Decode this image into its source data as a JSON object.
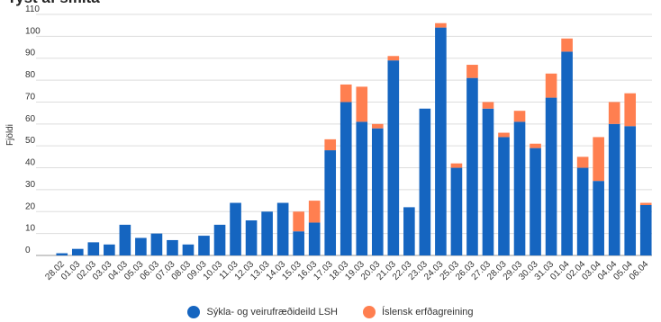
{
  "chart_data": {
    "type": "bar",
    "title": "Tyst af smita",
    "ylabel": "Fjöldi",
    "ylim": [
      0,
      110
    ],
    "yticks": [
      0,
      10,
      20,
      30,
      40,
      50,
      60,
      70,
      80,
      90,
      100,
      110
    ],
    "categories": [
      "28.02",
      "01.03",
      "02.03",
      "03.03",
      "04.03",
      "05.03",
      "06.03",
      "07.03",
      "08.03",
      "09.03",
      "10.03",
      "11.03",
      "12.03",
      "13.03",
      "14.03",
      "15.03",
      "16.03",
      "17.03",
      "18.03",
      "19.03",
      "20.03",
      "21.03",
      "22.03",
      "23.03",
      "24.03",
      "25.03",
      "26.03",
      "27.03",
      "28.03",
      "29.03",
      "30.03",
      "31.03",
      "01.04",
      "02.04",
      "03.04",
      "04.04",
      "05.04",
      "06.04"
    ],
    "stacked": true,
    "grid": true,
    "legend_position": "bottom",
    "series": [
      {
        "name": "Sýkla- og veirufræðideild LSH",
        "color": "#1565c0",
        "values": [
          1,
          3,
          6,
          5,
          14,
          8,
          10,
          7,
          5,
          9,
          14,
          24,
          16,
          20,
          24,
          11,
          15,
          48,
          70,
          61,
          58,
          89,
          22,
          67,
          104,
          40,
          81,
          67,
          54,
          61,
          49,
          72,
          93,
          40,
          34,
          60,
          59,
          23
        ]
      },
      {
        "name": "Íslensk erfðagreining",
        "color": "#ff7f50",
        "values": [
          0,
          0,
          0,
          0,
          0,
          0,
          0,
          0,
          0,
          0,
          0,
          0,
          0,
          0,
          0,
          9,
          10,
          5,
          8,
          16,
          2,
          2,
          0,
          0,
          2,
          2,
          6,
          3,
          2,
          5,
          2,
          11,
          6,
          5,
          20,
          10,
          15,
          1
        ]
      }
    ]
  }
}
